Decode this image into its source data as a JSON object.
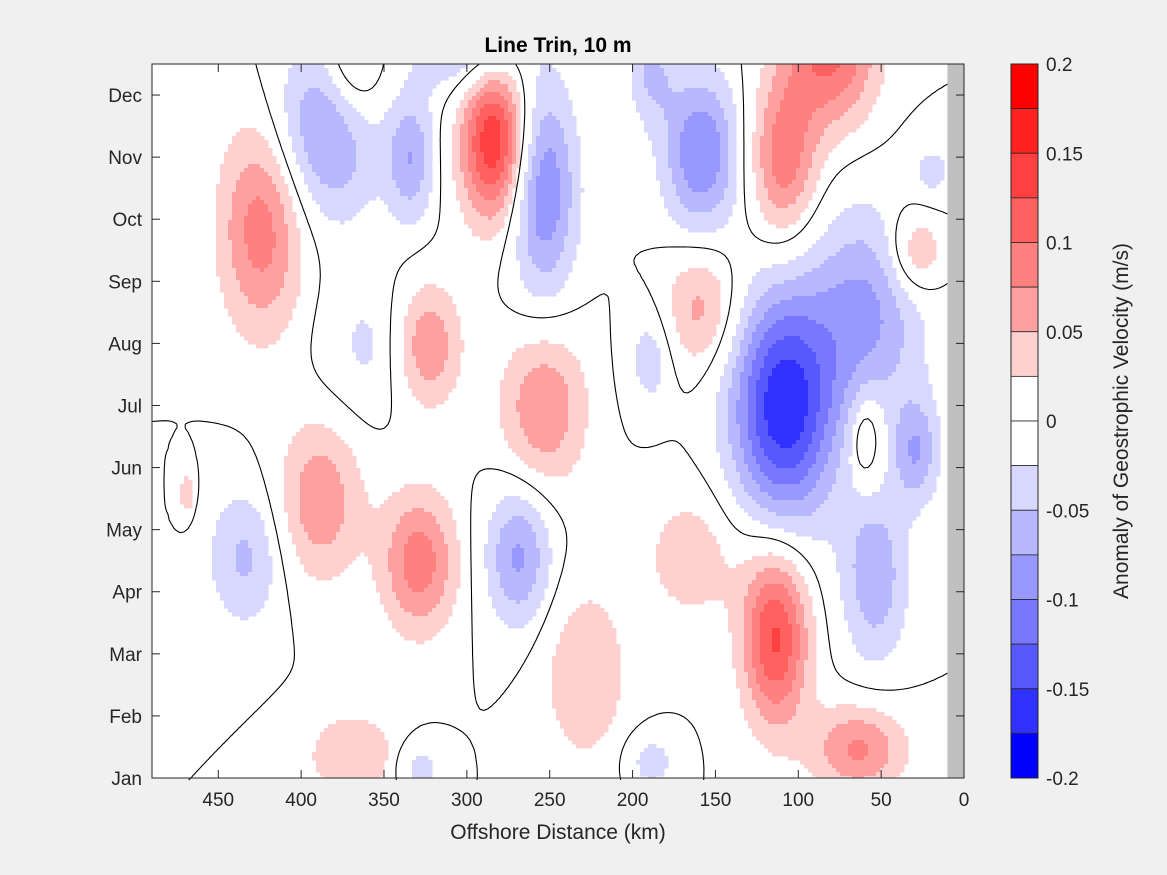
{
  "chart_data": {
    "type": "heatmap",
    "title": "Line Trin, 10 m",
    "xlabel": "Offshore Distance (km)",
    "ylabel": "",
    "xlim": [
      490,
      0
    ],
    "ylim": [
      "Jan",
      "Dec"
    ],
    "x_ticks": [
      450,
      400,
      350,
      300,
      250,
      200,
      150,
      100,
      50,
      0
    ],
    "x_tick_labels": [
      "450",
      "400",
      "350",
      "300",
      "250",
      "200",
      "150",
      "100",
      "50",
      "0"
    ],
    "y_ticks": [
      "Jan",
      "Feb",
      "Mar",
      "Apr",
      "May",
      "Jun",
      "Jul",
      "Aug",
      "Sep",
      "Oct",
      "Nov",
      "Dec"
    ],
    "colorbar": {
      "label": "Anomaly of Geostrophic Velocity (m/s)",
      "range": [
        -0.2,
        0.2
      ],
      "tick_values": [
        0.2,
        0.15,
        0.1,
        0.05,
        0,
        -0.05,
        -0.1,
        -0.15,
        -0.2
      ],
      "tick_labels": [
        "0.2",
        "0.15",
        "0.1",
        "0.05",
        "0",
        "-0.05",
        "-0.1",
        "-0.15",
        "-0.2"
      ],
      "levels": [
        {
          "range": [
            0.175,
            0.2
          ],
          "color": "#ff0000"
        },
        {
          "range": [
            0.15,
            0.175
          ],
          "color": "#ff2020"
        },
        {
          "range": [
            0.125,
            0.15
          ],
          "color": "#ff4040"
        },
        {
          "range": [
            0.1,
            0.125
          ],
          "color": "#ff6060"
        },
        {
          "range": [
            0.075,
            0.1
          ],
          "color": "#ff8080"
        },
        {
          "range": [
            0.05,
            0.075
          ],
          "color": "#ffa0a0"
        },
        {
          "range": [
            0.025,
            0.05
          ],
          "color": "#ffd0d0"
        },
        {
          "range": [
            0,
            0.025
          ],
          "color": "#ffffff"
        },
        {
          "range": [
            -0.025,
            0
          ],
          "color": "#ffffff"
        },
        {
          "range": [
            -0.05,
            -0.025
          ],
          "color": "#d8d8ff"
        },
        {
          "range": [
            -0.075,
            -0.05
          ],
          "color": "#b8b8ff"
        },
        {
          "range": [
            -0.1,
            -0.075
          ],
          "color": "#9898ff"
        },
        {
          "range": [
            -0.125,
            -0.1
          ],
          "color": "#7878ff"
        },
        {
          "range": [
            -0.15,
            -0.125
          ],
          "color": "#5858ff"
        },
        {
          "range": [
            -0.175,
            -0.15
          ],
          "color": "#3030ff"
        },
        {
          "range": [
            -0.2,
            -0.175
          ],
          "color": "#0000ff"
        }
      ]
    },
    "zero_contour": true,
    "blobs": [
      {
        "x": 425,
        "m": 8.9,
        "sx": 18,
        "sm": 1.2,
        "a": 0.09
      },
      {
        "x": 390,
        "m": 4.5,
        "sx": 18,
        "sm": 0.9,
        "a": 0.07
      },
      {
        "x": 330,
        "m": 3.5,
        "sx": 16,
        "sm": 0.8,
        "a": 0.09
      },
      {
        "x": 325,
        "m": 7.0,
        "sx": 14,
        "sm": 0.7,
        "a": 0.075
      },
      {
        "x": 285,
        "m": 10.3,
        "sx": 14,
        "sm": 0.9,
        "a": 0.15
      },
      {
        "x": 370,
        "m": 11.4,
        "sx": 14,
        "sm": 0.7,
        "a": 0.06
      },
      {
        "x": 255,
        "m": 6.0,
        "sx": 18,
        "sm": 0.9,
        "a": 0.075
      },
      {
        "x": 230,
        "m": 1.7,
        "sx": 18,
        "sm": 1.0,
        "a": 0.05
      },
      {
        "x": 160,
        "m": 7.6,
        "sx": 16,
        "sm": 0.7,
        "a": 0.06
      },
      {
        "x": 115,
        "m": 2.3,
        "sx": 14,
        "sm": 1.0,
        "a": 0.13
      },
      {
        "x": 110,
        "m": 10.0,
        "sx": 14,
        "sm": 0.9,
        "a": 0.09
      },
      {
        "x": 82,
        "m": 11.8,
        "sx": 20,
        "sm": 0.9,
        "a": 0.11
      },
      {
        "x": 60,
        "m": 5.5,
        "sx": 8,
        "sm": 0.6,
        "a": 0.05
      },
      {
        "x": 30,
        "m": 8.5,
        "sx": 12,
        "sm": 0.5,
        "a": 0.06
      },
      {
        "x": 65,
        "m": 0.5,
        "sx": 20,
        "sm": 0.5,
        "a": 0.08
      },
      {
        "x": 165,
        "m": 3.6,
        "sx": 22,
        "sm": 0.8,
        "a": 0.04
      },
      {
        "x": 370,
        "m": 0.4,
        "sx": 20,
        "sm": 0.5,
        "a": 0.05
      },
      {
        "x": 385,
        "m": 10.5,
        "sx": 22,
        "sm": 1.0,
        "a": -0.09
      },
      {
        "x": 270,
        "m": 3.6,
        "sx": 14,
        "sm": 0.8,
        "a": -0.08
      },
      {
        "x": 255,
        "m": 9.5,
        "sx": 14,
        "sm": 1.2,
        "a": -0.1
      },
      {
        "x": 160,
        "m": 10.1,
        "sx": 16,
        "sm": 0.9,
        "a": -0.1
      },
      {
        "x": 110,
        "m": 6.0,
        "sx": 22,
        "sm": 1.3,
        "a": -0.17
      },
      {
        "x": 60,
        "m": 7.5,
        "sx": 24,
        "sm": 1.2,
        "a": -0.08
      },
      {
        "x": 30,
        "m": 5.3,
        "sx": 10,
        "sm": 0.6,
        "a": -0.07
      },
      {
        "x": 55,
        "m": 3.3,
        "sx": 14,
        "sm": 1.0,
        "a": -0.07
      },
      {
        "x": 435,
        "m": 3.6,
        "sx": 16,
        "sm": 0.8,
        "a": -0.055
      },
      {
        "x": 335,
        "m": 10.0,
        "sx": 10,
        "sm": 0.7,
        "a": -0.07
      },
      {
        "x": 300,
        "m": 11.9,
        "sx": 22,
        "sm": 0.6,
        "a": -0.07
      },
      {
        "x": 190,
        "m": 11.4,
        "sx": 10,
        "sm": 0.6,
        "a": -0.05
      },
      {
        "x": 190,
        "m": 6.8,
        "sx": 10,
        "sm": 0.6,
        "a": -0.04
      },
      {
        "x": 360,
        "m": 7.0,
        "sx": 20,
        "sm": 0.8,
        "a": -0.03
      },
      {
        "x": 20,
        "m": 9.8,
        "sx": 10,
        "sm": 0.4,
        "a": -0.03
      },
      {
        "x": 190,
        "m": 0.3,
        "sx": 10,
        "sm": 0.3,
        "a": -0.04
      },
      {
        "x": 330,
        "m": 0.2,
        "sx": 10,
        "sm": 0.3,
        "a": -0.04
      },
      {
        "x": 470,
        "m": 4.6,
        "sx": 4,
        "sm": 0.3,
        "a": 0.04
      }
    ]
  }
}
